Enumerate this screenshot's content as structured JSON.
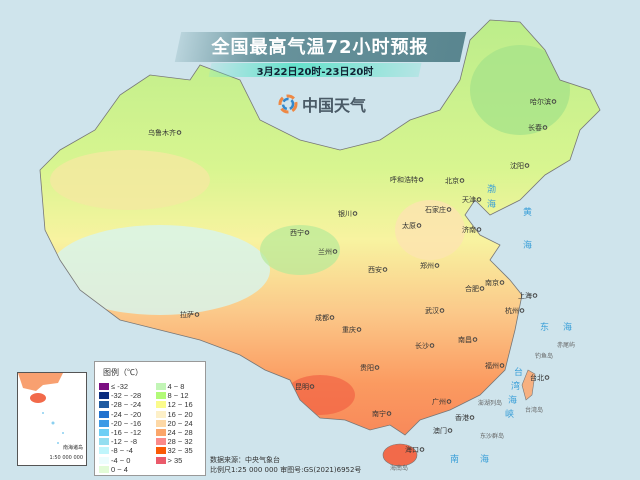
{
  "title": "全国最高气温72小时预报",
  "subtitle": "3月22日20时-23日20时",
  "brand": "中国天气",
  "legend": {
    "title": "图例（℃）",
    "items": [
      {
        "label": "≤ -32",
        "color": "#7b0f82"
      },
      {
        "label": "-32 ~ -28",
        "color": "#0b2d7e"
      },
      {
        "label": "-28 ~ -24",
        "color": "#1f5aa0"
      },
      {
        "label": "-24 ~ -20",
        "color": "#2272cf"
      },
      {
        "label": "-20 ~ -16",
        "color": "#3d9ae6"
      },
      {
        "label": "-16 ~ -12",
        "color": "#6dcff5"
      },
      {
        "label": "-12 ~ -8",
        "color": "#93def0"
      },
      {
        "label": "-8 ~ -4",
        "color": "#bff5fb"
      },
      {
        "label": "-4 ~ 0",
        "color": "#ecfdfd"
      },
      {
        "label": "0 ~ 4",
        "color": "#e2fbd6"
      },
      {
        "label": "4 ~ 8",
        "color": "#c2f5b6"
      },
      {
        "label": "8 ~ 12",
        "color": "#b2fa78"
      },
      {
        "label": "12 ~ 16",
        "color": "#fbfb8b"
      },
      {
        "label": "16 ~ 20",
        "color": "#fdf0c8"
      },
      {
        "label": "20 ~ 24",
        "color": "#fdd8a6"
      },
      {
        "label": "24 ~ 28",
        "color": "#fba66a"
      },
      {
        "label": "28 ~ 32",
        "color": "#fb8a8a"
      },
      {
        "label": "32 ~ 35",
        "color": "#fa5a05"
      },
      {
        "label": "> 35",
        "color": "#ea5a6a"
      }
    ]
  },
  "source": "数据来源：中央气象台",
  "scale": "比例尺1:25 000 000   审图号:GS(2021)6952号",
  "inset": {
    "label": "南海诸岛",
    "scale": "1:50 000 000"
  },
  "cities": [
    "乌鲁木齐",
    "哈尔滨",
    "长春",
    "沈阳",
    "呼和浩特",
    "北京",
    "天津",
    "石家庄",
    "太原",
    "济南",
    "银川",
    "西宁",
    "兰州",
    "西安",
    "郑州",
    "合肥",
    "南京",
    "上海",
    "杭州",
    "武汉",
    "成都",
    "重庆",
    "长沙",
    "南昌",
    "福州",
    "台北",
    "贵阳",
    "昆明",
    "南宁",
    "广州",
    "香港",
    "澳门",
    "海口",
    "拉萨"
  ],
  "seas": [
    "渤",
    "海",
    "黄",
    "海",
    "东",
    "海",
    "台",
    "湾",
    "海",
    "峡",
    "南",
    "海"
  ],
  "islands": [
    "台湾岛",
    "海南岛",
    "钓鱼岛",
    "赤尾屿",
    "澎湖列岛",
    "东沙群岛"
  ]
}
